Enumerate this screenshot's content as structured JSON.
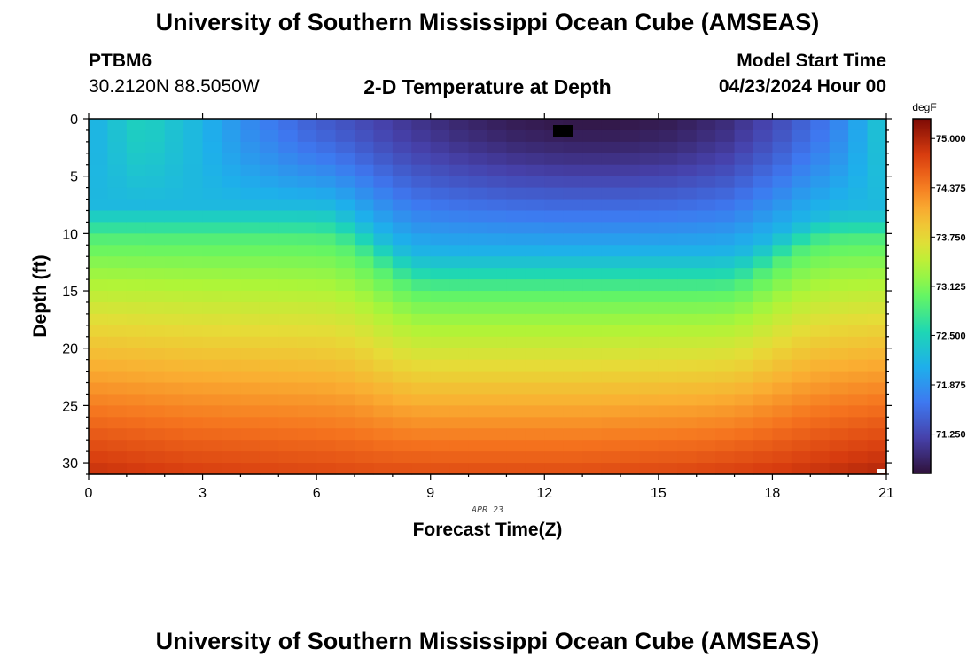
{
  "page": {
    "title_top": "University of Southern Mississippi Ocean Cube (AMSEAS)",
    "title_bottom": "University of Southern Mississippi Ocean Cube (AMSEAS)",
    "station_id": "PTBM6",
    "station_coords": "30.2120N  88.5050W",
    "plot_title": "2-D Temperature at Depth",
    "model_start_label": "Model Start Time",
    "model_start_value": "04/23/2024 Hour 00"
  },
  "chart_data": {
    "type": "heatmap",
    "title": "2-D Temperature at Depth",
    "xlabel": "Forecast Time(Z)",
    "ylabel": "Depth (ft)",
    "x_range": [
      0,
      21
    ],
    "y_range": [
      0,
      31
    ],
    "x_ticks": [
      0,
      3,
      6,
      9,
      12,
      15,
      18,
      21
    ],
    "x_tick_labels": [
      "0",
      "3",
      "6",
      "9",
      "12",
      "15",
      "18",
      "21"
    ],
    "y_ticks": [
      0,
      5,
      10,
      15,
      20,
      25,
      30
    ],
    "y_tick_labels": [
      "0",
      "5",
      "10",
      "15",
      "20",
      "25",
      "30"
    ],
    "date_label": "APR 23",
    "colorbar": {
      "unit": "degF",
      "min": 70.75,
      "max": 75.25,
      "ticks": [
        75.0,
        74.375,
        73.75,
        73.125,
        72.5,
        71.875,
        71.25
      ],
      "tick_labels": [
        "75.000",
        "74.375",
        "73.750",
        "73.125",
        "72.500",
        "71.875",
        "71.250"
      ]
    },
    "grid_resolution": {
      "time_step_hours": 0.5,
      "depth_step_ft": 1
    },
    "surface_profile": [
      72.1,
      72.5,
      72.2,
      71.8,
      71.5,
      71.3,
      71.1,
      70.95,
      70.85,
      70.8,
      70.8,
      70.85,
      71.0,
      71.3,
      71.7,
      72.4
    ],
    "deep_profile": [
      74.9,
      74.8,
      74.75,
      74.7,
      74.7,
      74.7,
      74.75,
      74.85,
      75.0
    ]
  }
}
